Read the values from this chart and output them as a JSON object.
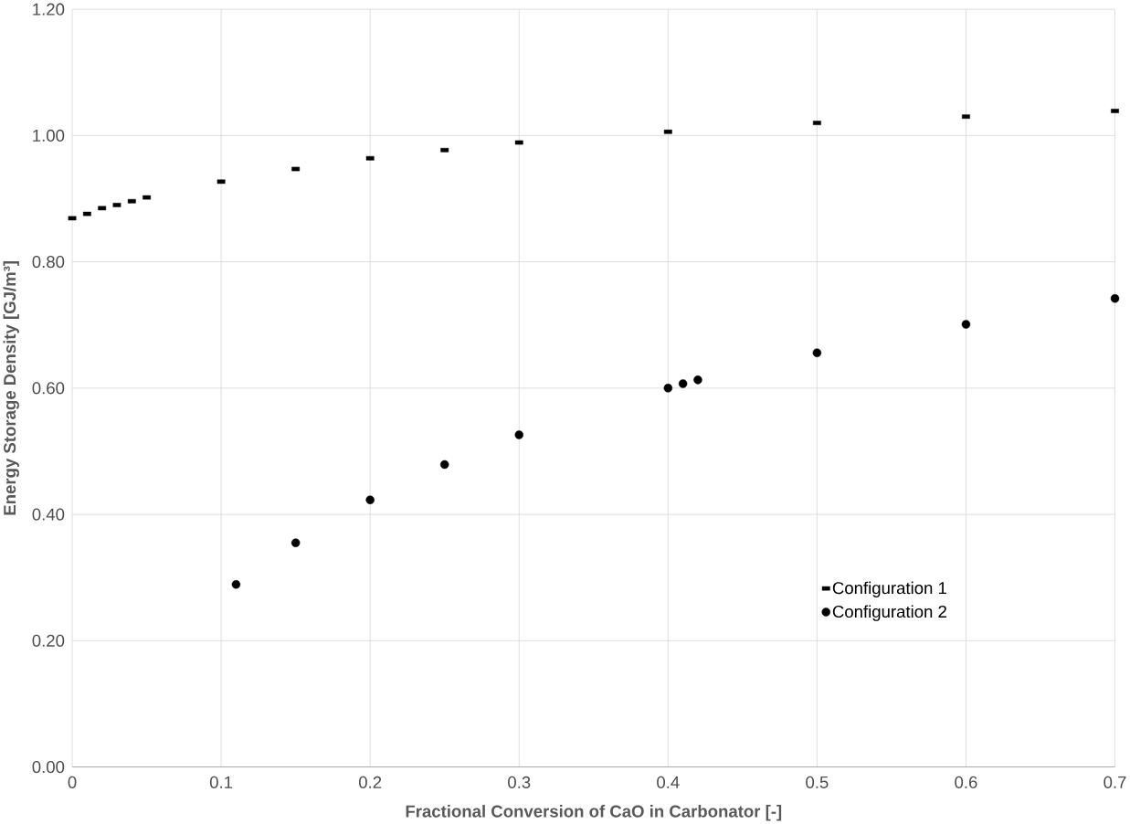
{
  "chart_data": {
    "type": "scatter",
    "xlabel": "Fractional Conversion of CaO in Carbonator [-]",
    "ylabel": "Energy Storage Density [GJ/m³]",
    "xlim": [
      0,
      0.7
    ],
    "ylim": [
      0,
      1.2
    ],
    "xticks": [
      0,
      0.1,
      0.2,
      0.3,
      0.4,
      0.5,
      0.6,
      0.7
    ],
    "yticks": [
      {
        "value": 0,
        "label": "0.00"
      },
      {
        "value": 0.2,
        "label": "0.20"
      },
      {
        "value": 0.4,
        "label": "0.40"
      },
      {
        "value": 0.6,
        "label": "0.60"
      },
      {
        "value": 0.8,
        "label": "0.80"
      },
      {
        "value": 1.0,
        "label": "1.00"
      },
      {
        "value": 1.2,
        "label": "1.20"
      }
    ],
    "grid": true,
    "legend": "bottom right",
    "series": [
      {
        "name": "Configuration 1",
        "color": "#000000",
        "marker": "square",
        "x": [
          0,
          0.01,
          0.02,
          0.03,
          0.04,
          0.05,
          0.1,
          0.15,
          0.2,
          0.25,
          0.3,
          0.4,
          0.5,
          0.6,
          0.7
        ],
        "values": [
          0.869,
          0.876,
          0.885,
          0.89,
          0.896,
          0.902,
          0.927,
          0.947,
          0.964,
          0.977,
          0.989,
          1.006,
          1.02,
          1.03,
          1.039
        ]
      },
      {
        "name": "Configuration 2",
        "color": "#000000",
        "marker": "circle",
        "x": [
          0.11,
          0.15,
          0.2,
          0.25,
          0.3,
          0.4,
          0.41,
          0.42,
          0.5,
          0.6,
          0.7
        ],
        "values": [
          0.289,
          0.355,
          0.423,
          0.479,
          0.526,
          0.6,
          0.607,
          0.613,
          0.656,
          0.701,
          0.742
        ]
      }
    ]
  }
}
